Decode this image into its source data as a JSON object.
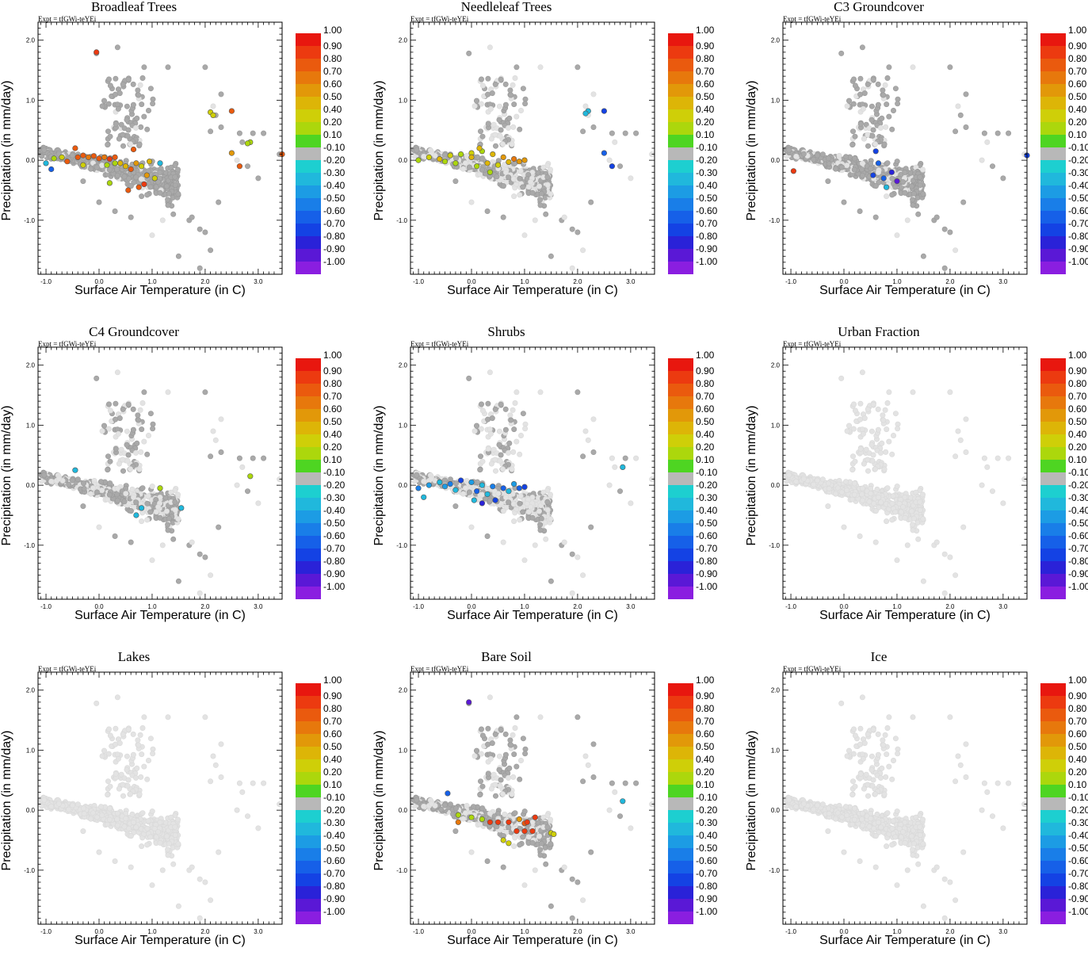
{
  "experiment_label": "Expt = tfGWi-teYEi",
  "colorbar": {
    "levels": [
      "1.00",
      "0.90",
      "0.80",
      "0.70",
      "0.60",
      "0.50",
      "0.40",
      "0.20",
      "0.10",
      "-0.10",
      "-0.20",
      "-0.30",
      "-0.40",
      "-0.50",
      "-0.60",
      "-0.70",
      "-0.80",
      "-0.90",
      "-1.00"
    ],
    "colors": [
      "#e8170f",
      "#ec3a10",
      "#ea5a0e",
      "#e7780c",
      "#e29809",
      "#ddb507",
      "#cfcf08",
      "#acd70c",
      "#4ed522",
      "#b8b8b8",
      "#1dcfd0",
      "#20b8dc",
      "#1c9ce4",
      "#197ee8",
      "#1660e8",
      "#1442e4",
      "#2a22d8",
      "#5a18d6",
      "#8a1ee0"
    ]
  },
  "chart_data": [
    {
      "type": "scatter",
      "title": "Broadleaf Trees",
      "xlabel": "Surface Air Temperature (in C)",
      "ylabel": "Precipitation (in mm/day)",
      "xlim": [
        -1.15,
        3.45
      ],
      "ylim": [
        -1.9,
        2.3
      ],
      "xticks": [
        "-1.0",
        "0.0",
        "1.0",
        "2.0",
        "3.0"
      ],
      "yticks": [
        "-1.0",
        "0.0",
        "1.0",
        "2.0"
      ],
      "colored_points": [
        [
          -0.05,
          1.8,
          0.9
        ],
        [
          2.1,
          0.8,
          0.4
        ],
        [
          2.15,
          0.75,
          0.4
        ],
        [
          2.5,
          0.82,
          0.8
        ],
        [
          2.85,
          0.3,
          0.2
        ],
        [
          2.8,
          0.28,
          0.2
        ],
        [
          2.5,
          0.12,
          0.6
        ],
        [
          2.65,
          -0.1,
          0.8
        ],
        [
          3.45,
          0.1,
          0.8
        ],
        [
          -1.0,
          -0.05,
          -0.3
        ],
        [
          -0.9,
          -0.15,
          -0.6
        ],
        [
          -0.85,
          0.03,
          0.2
        ],
        [
          -0.7,
          0.05,
          0.4
        ],
        [
          -0.6,
          -0.02,
          0.8
        ],
        [
          -0.45,
          0.2,
          0.8
        ],
        [
          -0.4,
          0.05,
          0.8
        ],
        [
          -0.3,
          0.08,
          0.8
        ],
        [
          -0.2,
          0.05,
          0.7
        ],
        [
          -0.1,
          0.07,
          0.8
        ],
        [
          0.0,
          0.03,
          0.8
        ],
        [
          0.1,
          0.05,
          0.7
        ],
        [
          0.2,
          0.02,
          0.9
        ],
        [
          -0.3,
          -0.08,
          0.4
        ],
        [
          0.3,
          -0.05,
          0.2
        ],
        [
          0.5,
          -0.1,
          0.5
        ],
        [
          0.6,
          -0.15,
          0.8
        ],
        [
          0.7,
          -0.05,
          0.6
        ],
        [
          0.8,
          -0.1,
          0.4
        ],
        [
          0.9,
          -0.25,
          0.6
        ],
        [
          0.85,
          -0.4,
          0.9
        ],
        [
          0.75,
          -0.45,
          0.8
        ],
        [
          0.55,
          -0.5,
          0.8
        ],
        [
          0.2,
          -0.38,
          0.2
        ],
        [
          0.15,
          -0.08,
          0.2
        ],
        [
          0.4,
          -0.05,
          0.5
        ],
        [
          1.05,
          -0.3,
          0.4
        ],
        [
          1.15,
          -0.05,
          -0.3
        ],
        [
          0.3,
          0.05,
          0.8
        ],
        [
          0.65,
          0.18,
          0.8
        ],
        [
          0.95,
          -0.02,
          0.5
        ]
      ],
      "gray_points": []
    },
    {
      "type": "scatter",
      "title": "Needleleaf Trees",
      "xlabel": "Surface Air Temperature (in C)",
      "ylabel": "Precipitation (in mm/day)",
      "xlim": [
        -1.15,
        3.45
      ],
      "ylim": [
        -1.9,
        2.3
      ],
      "xticks": [
        "-1.0",
        "0.0",
        "1.0",
        "2.0",
        "3.0"
      ],
      "yticks": [
        "-1.0",
        "0.0",
        "1.0",
        "2.0"
      ],
      "colored_points": [
        [
          2.2,
          0.82,
          -0.3
        ],
        [
          2.15,
          0.78,
          -0.3
        ],
        [
          2.5,
          0.82,
          -0.7
        ],
        [
          2.5,
          0.12,
          -0.6
        ],
        [
          2.65,
          -0.1,
          -0.7
        ],
        [
          -1.0,
          0.0,
          0.2
        ],
        [
          -0.8,
          0.05,
          0.4
        ],
        [
          -0.6,
          0.02,
          0.5
        ],
        [
          -0.4,
          0.08,
          0.4
        ],
        [
          -0.2,
          0.1,
          0.2
        ],
        [
          0.0,
          0.12,
          0.4
        ],
        [
          0.2,
          0.15,
          0.2
        ],
        [
          0.4,
          0.1,
          0.5
        ],
        [
          0.6,
          0.05,
          0.6
        ],
        [
          0.8,
          0.02,
          0.7
        ],
        [
          1.0,
          0.0,
          0.6
        ],
        [
          -0.3,
          -0.05,
          0.2
        ],
        [
          0.1,
          -0.1,
          0.2
        ],
        [
          0.3,
          -0.05,
          0.5
        ],
        [
          0.5,
          -0.08,
          0.4
        ],
        [
          0.7,
          -0.03,
          0.5
        ],
        [
          0.9,
          -0.02,
          0.6
        ],
        [
          0.0,
          0.05,
          0.5
        ],
        [
          0.15,
          0.2,
          0.5
        ],
        [
          -0.5,
          -0.02,
          0.2
        ],
        [
          0.35,
          -0.2,
          0.2
        ]
      ],
      "gray_points": []
    },
    {
      "type": "scatter",
      "title": "C3 Groundcover",
      "xlabel": "Surface Air Temperature (in C)",
      "ylabel": "Precipitation (in mm/day)",
      "xlim": [
        -1.15,
        3.45
      ],
      "ylim": [
        -1.9,
        2.3
      ],
      "xticks": [
        "-1.0",
        "0.0",
        "1.0",
        "2.0",
        "3.0"
      ],
      "yticks": [
        "-1.0",
        "0.0",
        "1.0",
        "2.0"
      ],
      "colored_points": [
        [
          -0.95,
          -0.18,
          0.9
        ],
        [
          3.45,
          0.08,
          -0.7
        ],
        [
          0.6,
          0.15,
          -0.7
        ],
        [
          0.65,
          -0.05,
          -0.6
        ],
        [
          0.55,
          -0.25,
          -0.7
        ],
        [
          0.75,
          -0.3,
          -0.6
        ],
        [
          0.9,
          -0.2,
          -0.8
        ],
        [
          1.0,
          -0.35,
          -0.9
        ],
        [
          0.8,
          -0.45,
          -0.3
        ]
      ],
      "gray_points": []
    },
    {
      "type": "scatter",
      "title": "C4 Groundcover",
      "xlabel": "Surface Air Temperature (in C)",
      "ylabel": "Precipitation (in mm/day)",
      "xlim": [
        -1.15,
        3.45
      ],
      "ylim": [
        -1.9,
        2.3
      ],
      "xticks": [
        "-1.0",
        "0.0",
        "1.0",
        "2.0",
        "3.0"
      ],
      "yticks": [
        "-1.0",
        "0.0",
        "1.0",
        "2.0"
      ],
      "colored_points": [
        [
          -0.45,
          0.25,
          -0.3
        ],
        [
          2.85,
          0.15,
          0.2
        ],
        [
          1.15,
          -0.05,
          0.2
        ],
        [
          0.8,
          -0.38,
          -0.3
        ],
        [
          0.7,
          -0.5,
          -0.3
        ],
        [
          1.55,
          -0.38,
          -0.3
        ]
      ],
      "gray_points": []
    },
    {
      "type": "scatter",
      "title": "Shrubs",
      "xlabel": "Surface Air Temperature (in C)",
      "ylabel": "Precipitation (in mm/day)",
      "xlim": [
        -1.15,
        3.45
      ],
      "ylim": [
        -1.9,
        2.3
      ],
      "xticks": [
        "-1.0",
        "0.0",
        "1.0",
        "2.0",
        "3.0"
      ],
      "yticks": [
        "-1.0",
        "0.0",
        "1.0",
        "2.0"
      ],
      "colored_points": [
        [
          2.85,
          0.3,
          -0.3
        ],
        [
          -0.9,
          -0.2,
          -0.3
        ],
        [
          -1.0,
          -0.05,
          -0.5
        ],
        [
          -0.8,
          0.0,
          -0.4
        ],
        [
          -0.6,
          0.05,
          -0.3
        ],
        [
          -0.4,
          0.02,
          -0.5
        ],
        [
          -0.2,
          0.08,
          -0.7
        ],
        [
          0.0,
          0.05,
          -0.4
        ],
        [
          0.2,
          0.0,
          -0.3
        ],
        [
          0.4,
          -0.02,
          -0.5
        ],
        [
          0.6,
          -0.05,
          -0.6
        ],
        [
          0.8,
          0.02,
          -0.4
        ],
        [
          1.0,
          -0.03,
          -0.7
        ],
        [
          -0.3,
          -0.08,
          -0.3
        ],
        [
          0.1,
          -0.1,
          -0.6
        ],
        [
          0.3,
          -0.15,
          -0.3
        ],
        [
          0.7,
          -0.1,
          -0.3
        ],
        [
          0.9,
          -0.05,
          -0.6
        ],
        [
          0.45,
          -0.25,
          -0.7
        ],
        [
          0.2,
          -0.3,
          -0.8
        ],
        [
          0.05,
          -0.25,
          -0.3
        ],
        [
          -0.5,
          -0.02,
          -0.4
        ]
      ],
      "gray_points": []
    },
    {
      "type": "scatter",
      "title": "Urban Fraction",
      "xlabel": "Surface Air Temperature (in C)",
      "ylabel": "Precipitation (in mm/day)",
      "xlim": [
        -1.15,
        3.45
      ],
      "ylim": [
        -1.9,
        2.3
      ],
      "xticks": [
        "-1.0",
        "0.0",
        "1.0",
        "2.0",
        "3.0"
      ],
      "yticks": [
        "-1.0",
        "0.0",
        "1.0",
        "2.0"
      ],
      "colored_points": [],
      "gray_points": []
    },
    {
      "type": "scatter",
      "title": "Lakes",
      "xlabel": "Surface Air Temperature (in C)",
      "ylabel": "Precipitation (in mm/day)",
      "xlim": [
        -1.15,
        3.45
      ],
      "ylim": [
        -1.9,
        2.3
      ],
      "xticks": [
        "-1.0",
        "0.0",
        "1.0",
        "2.0",
        "3.0"
      ],
      "yticks": [
        "-1.0",
        "0.0",
        "1.0",
        "2.0"
      ],
      "colored_points": [],
      "gray_points": []
    },
    {
      "type": "scatter",
      "title": "Bare Soil",
      "xlabel": "Surface Air Temperature (in C)",
      "ylabel": "Precipitation (in mm/day)",
      "xlim": [
        -1.15,
        3.45
      ],
      "ylim": [
        -1.9,
        2.3
      ],
      "xticks": [
        "-1.0",
        "0.0",
        "1.0",
        "2.0",
        "3.0"
      ],
      "yticks": [
        "-1.0",
        "0.0",
        "1.0",
        "2.0"
      ],
      "colored_points": [
        [
          -0.05,
          1.8,
          -0.9
        ],
        [
          -0.45,
          0.28,
          -0.6
        ],
        [
          2.85,
          0.15,
          -0.3
        ],
        [
          -0.25,
          -0.08,
          0.2
        ],
        [
          -0.25,
          -0.2,
          0.7
        ],
        [
          0.0,
          -0.12,
          0.2
        ],
        [
          0.2,
          -0.15,
          0.2
        ],
        [
          0.35,
          -0.2,
          0.9
        ],
        [
          0.5,
          -0.2,
          0.9
        ],
        [
          0.7,
          -0.2,
          0.9
        ],
        [
          0.9,
          -0.15,
          0.6
        ],
        [
          1.0,
          -0.22,
          0.8
        ],
        [
          1.2,
          -0.12,
          0.9
        ],
        [
          1.15,
          -0.35,
          0.9
        ],
        [
          1.0,
          -0.35,
          0.9
        ],
        [
          0.6,
          -0.5,
          0.4
        ],
        [
          0.7,
          -0.55,
          0.4
        ],
        [
          0.85,
          -0.35,
          0.9
        ],
        [
          1.5,
          -0.38,
          0.4
        ],
        [
          1.55,
          -0.4,
          0.4
        ],
        [
          1.05,
          -0.2,
          0.9
        ]
      ],
      "gray_points": []
    },
    {
      "type": "scatter",
      "title": "Ice",
      "xlabel": "Surface Air Temperature (in C)",
      "ylabel": "Precipitation (in mm/day)",
      "xlim": [
        -1.15,
        3.45
      ],
      "ylim": [
        -1.9,
        2.3
      ],
      "xticks": [
        "-1.0",
        "0.0",
        "1.0",
        "2.0",
        "3.0"
      ],
      "yticks": [
        "-1.0",
        "0.0",
        "1.0",
        "2.0"
      ],
      "colored_points": [],
      "gray_points": []
    }
  ]
}
